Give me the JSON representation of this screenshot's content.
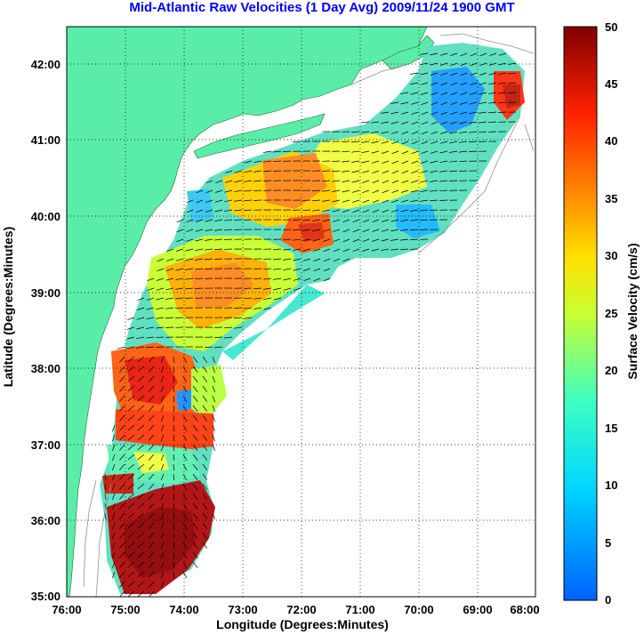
{
  "title": "Mid-Atlantic Raw Velocities (1 Day Avg) 2009/11/24 1900 GMT",
  "map": {
    "xlabel": "Longitude (Degrees:Minutes)",
    "ylabel": "Latitude (Degrees:Minutes)",
    "x_ticks": [
      "76:00",
      "75:00",
      "74:00",
      "73:00",
      "72:00",
      "71:00",
      "70:00",
      "69:00",
      "68:00"
    ],
    "y_ticks": [
      "35:00",
      "36:00",
      "37:00",
      "38:00",
      "39:00",
      "40:00",
      "41:00",
      "42:00"
    ],
    "land_color": "#5aeda8",
    "grid": "dotted"
  },
  "colorbar": {
    "label": "Surface Velocity (cm/s)",
    "ticks": [
      "0",
      "5",
      "10",
      "15",
      "20",
      "25",
      "30",
      "35",
      "40",
      "45",
      "50"
    ],
    "colormap": "jet",
    "range": [
      0,
      50
    ]
  }
}
